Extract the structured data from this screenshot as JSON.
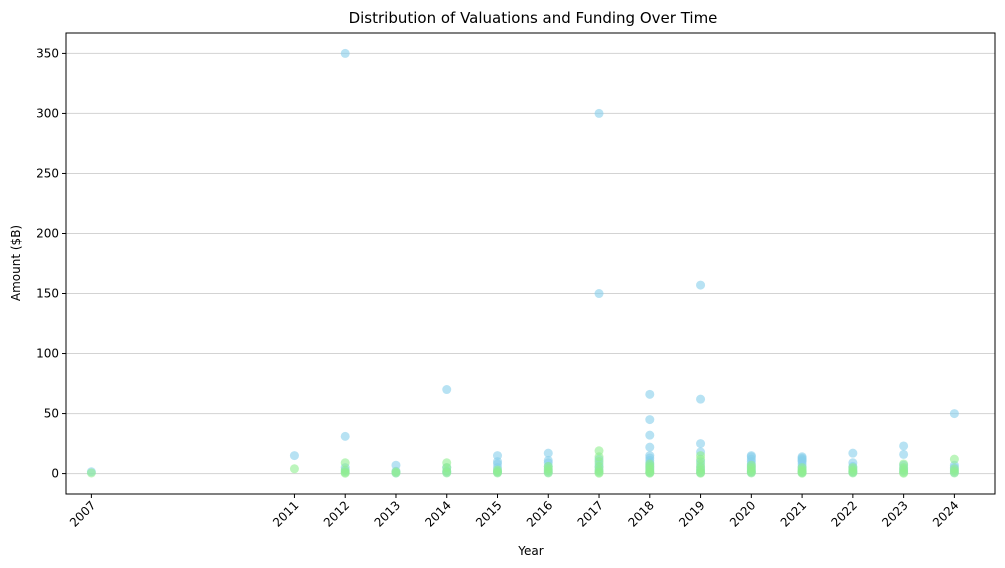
{
  "chart_data": {
    "type": "scatter",
    "title": "Distribution of Valuations and Funding Over Time",
    "xlabel": "Year",
    "ylabel": "Amount ($B)",
    "xlim": [
      2006.5,
      2024.8
    ],
    "ylim": [
      -17,
      367
    ],
    "grid": "horizontal",
    "x_ticks": [
      2007,
      2011,
      2012,
      2013,
      2014,
      2015,
      2016,
      2017,
      2018,
      2019,
      2020,
      2021,
      2022,
      2023,
      2024
    ],
    "y_ticks": [
      0,
      50,
      100,
      150,
      200,
      250,
      300,
      350
    ],
    "series": [
      {
        "color": "#87ceeb",
        "points": [
          [
            2007,
            1.5
          ],
          [
            2011,
            15
          ],
          [
            2012,
            350
          ],
          [
            2012,
            31
          ],
          [
            2012,
            5
          ],
          [
            2012,
            2
          ],
          [
            2013,
            7
          ],
          [
            2013,
            2
          ],
          [
            2013,
            0.5
          ],
          [
            2014,
            70
          ],
          [
            2014,
            5
          ],
          [
            2014,
            2
          ],
          [
            2014,
            1
          ],
          [
            2015,
            15
          ],
          [
            2015,
            10
          ],
          [
            2015,
            8
          ],
          [
            2015,
            5
          ],
          [
            2015,
            2
          ],
          [
            2015,
            1
          ],
          [
            2016,
            17
          ],
          [
            2016,
            11
          ],
          [
            2016,
            9
          ],
          [
            2016,
            6
          ],
          [
            2016,
            3
          ],
          [
            2016,
            1
          ],
          [
            2017,
            300
          ],
          [
            2017,
            150
          ],
          [
            2017,
            12
          ],
          [
            2017,
            8
          ],
          [
            2017,
            5
          ],
          [
            2017,
            2
          ],
          [
            2018,
            66
          ],
          [
            2018,
            45
          ],
          [
            2018,
            32
          ],
          [
            2018,
            22
          ],
          [
            2018,
            15
          ],
          [
            2018,
            13
          ],
          [
            2018,
            11
          ],
          [
            2018,
            9
          ],
          [
            2018,
            7
          ],
          [
            2018,
            5
          ],
          [
            2018,
            3
          ],
          [
            2018,
            1
          ],
          [
            2019,
            157
          ],
          [
            2019,
            62
          ],
          [
            2019,
            25
          ],
          [
            2019,
            18
          ],
          [
            2019,
            10
          ],
          [
            2019,
            6
          ],
          [
            2019,
            3
          ],
          [
            2019,
            1
          ],
          [
            2020,
            15
          ],
          [
            2020,
            14
          ],
          [
            2020,
            12
          ],
          [
            2020,
            10
          ],
          [
            2020,
            8
          ],
          [
            2020,
            6
          ],
          [
            2020,
            4
          ],
          [
            2020,
            2
          ],
          [
            2020,
            1
          ],
          [
            2021,
            14
          ],
          [
            2021,
            13
          ],
          [
            2021,
            12
          ],
          [
            2021,
            11
          ],
          [
            2021,
            10
          ],
          [
            2021,
            8
          ],
          [
            2021,
            6
          ],
          [
            2021,
            4
          ],
          [
            2021,
            2
          ],
          [
            2021,
            1
          ],
          [
            2022,
            17
          ],
          [
            2022,
            9
          ],
          [
            2022,
            6
          ],
          [
            2022,
            4
          ],
          [
            2022,
            2
          ],
          [
            2022,
            1
          ],
          [
            2023,
            23
          ],
          [
            2023,
            16
          ],
          [
            2023,
            7
          ],
          [
            2023,
            4
          ],
          [
            2023,
            2
          ],
          [
            2024,
            50
          ],
          [
            2024,
            7
          ],
          [
            2024,
            5
          ],
          [
            2024,
            3
          ],
          [
            2024,
            1
          ]
        ]
      },
      {
        "color": "#90ee90",
        "points": [
          [
            2007,
            0.5
          ],
          [
            2011,
            4
          ],
          [
            2012,
            9
          ],
          [
            2012,
            3
          ],
          [
            2012,
            1
          ],
          [
            2012,
            0.3
          ],
          [
            2013,
            1.5
          ],
          [
            2013,
            0.5
          ],
          [
            2014,
            9
          ],
          [
            2014,
            5
          ],
          [
            2014,
            2
          ],
          [
            2014,
            0.5
          ],
          [
            2015,
            3
          ],
          [
            2015,
            1.5
          ],
          [
            2015,
            0.5
          ],
          [
            2016,
            6
          ],
          [
            2016,
            4
          ],
          [
            2016,
            2
          ],
          [
            2016,
            0.5
          ],
          [
            2017,
            19
          ],
          [
            2017,
            14
          ],
          [
            2017,
            10
          ],
          [
            2017,
            6
          ],
          [
            2017,
            3
          ],
          [
            2017,
            1
          ],
          [
            2017,
            0.3
          ],
          [
            2018,
            8
          ],
          [
            2018,
            6
          ],
          [
            2018,
            4
          ],
          [
            2018,
            2
          ],
          [
            2018,
            1
          ],
          [
            2018,
            0.3
          ],
          [
            2019,
            15
          ],
          [
            2019,
            12
          ],
          [
            2019,
            8
          ],
          [
            2019,
            5
          ],
          [
            2019,
            3
          ],
          [
            2019,
            1
          ],
          [
            2019,
            0.3
          ],
          [
            2020,
            7
          ],
          [
            2020,
            5
          ],
          [
            2020,
            3
          ],
          [
            2020,
            1.5
          ],
          [
            2020,
            0.5
          ],
          [
            2021,
            5
          ],
          [
            2021,
            3
          ],
          [
            2021,
            2
          ],
          [
            2021,
            1
          ],
          [
            2021,
            0.3
          ],
          [
            2022,
            5
          ],
          [
            2022,
            3
          ],
          [
            2022,
            1.5
          ],
          [
            2022,
            0.5
          ],
          [
            2023,
            8
          ],
          [
            2023,
            5
          ],
          [
            2023,
            3
          ],
          [
            2023,
            1
          ],
          [
            2023,
            0.3
          ],
          [
            2024,
            12
          ],
          [
            2024,
            4
          ],
          [
            2024,
            2
          ],
          [
            2024,
            0.5
          ]
        ]
      }
    ]
  }
}
